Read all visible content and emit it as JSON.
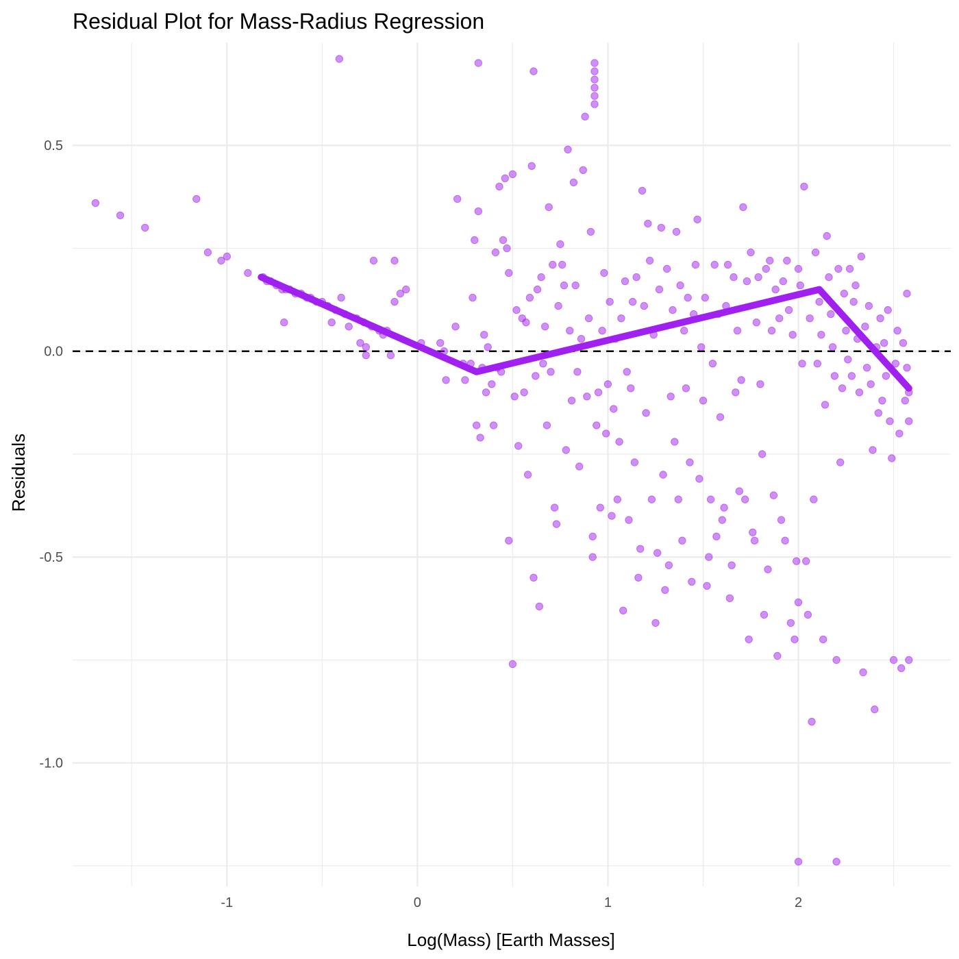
{
  "chart_data": {
    "type": "scatter",
    "title": "Residual Plot for Mass-Radius Regression",
    "xlabel": "Log(Mass) [Earth Masses]",
    "ylabel": "Residuals",
    "xlim": [
      -1.81,
      2.8
    ],
    "ylim": [
      -1.3,
      0.75
    ],
    "x_ticks": [
      -1,
      0,
      1,
      2
    ],
    "x_tick_labels": [
      "-1",
      "0",
      "1",
      "2"
    ],
    "y_ticks": [
      -1.0,
      -0.5,
      0.0,
      0.5
    ],
    "y_tick_labels": [
      "-1.0",
      "-0.5",
      "0.0",
      "0.5"
    ],
    "grid": true,
    "reference_line": {
      "y": 0,
      "style": "dashed",
      "color": "#000000"
    },
    "point_color": "#a020f0",
    "points": [
      [
        -1.69,
        0.36
      ],
      [
        -1.56,
        0.33
      ],
      [
        -1.43,
        0.3
      ],
      [
        -1.16,
        0.37
      ],
      [
        -1.1,
        0.24
      ],
      [
        -1.03,
        0.22
      ],
      [
        -1.0,
        0.23
      ],
      [
        -0.89,
        0.19
      ],
      [
        -0.81,
        0.18
      ],
      [
        -0.79,
        0.17
      ],
      [
        -0.77,
        0.17
      ],
      [
        -0.74,
        0.16
      ],
      [
        -0.71,
        0.15
      ],
      [
        -0.7,
        0.07
      ],
      [
        -0.69,
        0.15
      ],
      [
        -0.67,
        0.15
      ],
      [
        -0.64,
        0.14
      ],
      [
        -0.61,
        0.14
      ],
      [
        -0.58,
        0.13
      ],
      [
        -0.56,
        0.13
      ],
      [
        -0.53,
        0.12
      ],
      [
        -0.5,
        0.12
      ],
      [
        -0.47,
        0.11
      ],
      [
        -0.45,
        0.07
      ],
      [
        -0.43,
        0.1
      ],
      [
        -0.41,
        0.71
      ],
      [
        -0.4,
        0.13
      ],
      [
        -0.38,
        0.09
      ],
      [
        -0.36,
        0.06
      ],
      [
        -0.32,
        0.08
      ],
      [
        -0.3,
        0.02
      ],
      [
        -0.28,
        0.07
      ],
      [
        -0.27,
        0.01
      ],
      [
        -0.27,
        -0.01
      ],
      [
        -0.24,
        0.06
      ],
      [
        -0.23,
        0.22
      ],
      [
        -0.2,
        0.05
      ],
      [
        -0.18,
        0.04
      ],
      [
        -0.16,
        0.05
      ],
      [
        -0.14,
        -0.01
      ],
      [
        -0.12,
        0.12
      ],
      [
        -0.12,
        0.22
      ],
      [
        -0.09,
        0.14
      ],
      [
        -0.06,
        0.15
      ],
      [
        0.02,
        0.02
      ],
      [
        0.12,
        0.02
      ],
      [
        0.14,
        0.0
      ],
      [
        0.15,
        -0.07
      ],
      [
        0.2,
        0.06
      ],
      [
        0.21,
        0.37
      ],
      [
        0.24,
        -0.03
      ],
      [
        0.25,
        -0.07
      ],
      [
        0.28,
        -0.03
      ],
      [
        0.29,
        0.13
      ],
      [
        0.3,
        0.27
      ],
      [
        0.31,
        -0.18
      ],
      [
        0.32,
        0.34
      ],
      [
        0.32,
        0.7
      ],
      [
        0.33,
        -0.21
      ],
      [
        0.34,
        -0.04
      ],
      [
        0.35,
        0.04
      ],
      [
        0.36,
        -0.1
      ],
      [
        0.37,
        0.01
      ],
      [
        0.39,
        -0.08
      ],
      [
        0.4,
        -0.18
      ],
      [
        0.41,
        0.24
      ],
      [
        0.42,
        -0.04
      ],
      [
        0.43,
        0.4
      ],
      [
        0.44,
        -0.05
      ],
      [
        0.45,
        0.27
      ],
      [
        0.46,
        0.42
      ],
      [
        0.47,
        0.25
      ],
      [
        0.48,
        0.19
      ],
      [
        0.48,
        -0.46
      ],
      [
        0.5,
        0.43
      ],
      [
        0.5,
        -0.76
      ],
      [
        0.51,
        -0.11
      ],
      [
        0.52,
        0.1
      ],
      [
        0.53,
        -0.23
      ],
      [
        0.55,
        0.08
      ],
      [
        0.56,
        -0.1
      ],
      [
        0.57,
        0.07
      ],
      [
        0.58,
        -0.3
      ],
      [
        0.59,
        0.13
      ],
      [
        0.6,
        0.45
      ],
      [
        0.61,
        0.68
      ],
      [
        0.61,
        -0.55
      ],
      [
        0.62,
        -0.06
      ],
      [
        0.63,
        0.15
      ],
      [
        0.64,
        -0.62
      ],
      [
        0.65,
        0.18
      ],
      [
        0.66,
        -0.03
      ],
      [
        0.67,
        0.06
      ],
      [
        0.68,
        -0.18
      ],
      [
        0.69,
        0.35
      ],
      [
        0.7,
        -0.05
      ],
      [
        0.71,
        0.21
      ],
      [
        0.72,
        -0.38
      ],
      [
        0.73,
        -0.42
      ],
      [
        0.74,
        0.11
      ],
      [
        0.75,
        0.26
      ],
      [
        0.76,
        0.21
      ],
      [
        0.77,
        0.16
      ],
      [
        0.78,
        -0.24
      ],
      [
        0.79,
        0.49
      ],
      [
        0.8,
        0.05
      ],
      [
        0.81,
        -0.12
      ],
      [
        0.82,
        0.41
      ],
      [
        0.83,
        0.16
      ],
      [
        0.84,
        -0.05
      ],
      [
        0.85,
        -0.28
      ],
      [
        0.86,
        0.03
      ],
      [
        0.87,
        0.44
      ],
      [
        0.88,
        0.57
      ],
      [
        0.89,
        -0.11
      ],
      [
        0.9,
        0.08
      ],
      [
        0.91,
        0.29
      ],
      [
        0.92,
        -0.45
      ],
      [
        0.92,
        -0.5
      ],
      [
        0.93,
        0.7
      ],
      [
        0.93,
        0.68
      ],
      [
        0.93,
        0.66
      ],
      [
        0.93,
        0.64
      ],
      [
        0.93,
        0.62
      ],
      [
        0.93,
        0.6
      ],
      [
        0.94,
        -0.18
      ],
      [
        0.95,
        -0.1
      ],
      [
        0.96,
        -0.38
      ],
      [
        0.97,
        0.05
      ],
      [
        0.98,
        0.19
      ],
      [
        0.99,
        -0.2
      ],
      [
        1.0,
        -0.08
      ],
      [
        1.01,
        0.12
      ],
      [
        1.02,
        -0.4
      ],
      [
        1.03,
        -0.14
      ],
      [
        1.04,
        0.03
      ],
      [
        1.05,
        -0.36
      ],
      [
        1.06,
        -0.22
      ],
      [
        1.07,
        0.08
      ],
      [
        1.08,
        -0.63
      ],
      [
        1.09,
        0.17
      ],
      [
        1.1,
        -0.05
      ],
      [
        1.11,
        -0.41
      ],
      [
        1.12,
        -0.09
      ],
      [
        1.13,
        0.12
      ],
      [
        1.14,
        -0.27
      ],
      [
        1.15,
        0.18
      ],
      [
        1.16,
        -0.55
      ],
      [
        1.17,
        -0.48
      ],
      [
        1.18,
        0.39
      ],
      [
        1.19,
        0.11
      ],
      [
        1.2,
        -0.15
      ],
      [
        1.21,
        0.31
      ],
      [
        1.22,
        0.22
      ],
      [
        1.23,
        -0.36
      ],
      [
        1.24,
        0.04
      ],
      [
        1.25,
        -0.66
      ],
      [
        1.26,
        -0.49
      ],
      [
        1.27,
        0.15
      ],
      [
        1.28,
        0.3
      ],
      [
        1.29,
        -0.3
      ],
      [
        1.3,
        -0.58
      ],
      [
        1.31,
        0.2
      ],
      [
        1.32,
        -0.52
      ],
      [
        1.33,
        -0.11
      ],
      [
        1.34,
        0.1
      ],
      [
        1.35,
        -0.22
      ],
      [
        1.36,
        0.29
      ],
      [
        1.37,
        -0.36
      ],
      [
        1.38,
        0.16
      ],
      [
        1.39,
        -0.46
      ],
      [
        1.4,
        0.05
      ],
      [
        1.41,
        -0.09
      ],
      [
        1.42,
        0.13
      ],
      [
        1.43,
        -0.27
      ],
      [
        1.44,
        -0.56
      ],
      [
        1.45,
        0.09
      ],
      [
        1.46,
        0.21
      ],
      [
        1.47,
        0.32
      ],
      [
        1.48,
        -0.31
      ],
      [
        1.49,
        0.01
      ],
      [
        1.5,
        -0.12
      ],
      [
        1.51,
        0.13
      ],
      [
        1.52,
        -0.57
      ],
      [
        1.53,
        -0.5
      ],
      [
        1.54,
        -0.36
      ],
      [
        1.55,
        -0.03
      ],
      [
        1.56,
        0.21
      ],
      [
        1.57,
        -0.45
      ],
      [
        1.58,
        0.09
      ],
      [
        1.59,
        -0.16
      ],
      [
        1.6,
        -0.41
      ],
      [
        1.61,
        -0.38
      ],
      [
        1.62,
        0.11
      ],
      [
        1.63,
        0.21
      ],
      [
        1.64,
        -0.6
      ],
      [
        1.65,
        -0.52
      ],
      [
        1.66,
        0.18
      ],
      [
        1.67,
        -0.1
      ],
      [
        1.68,
        0.05
      ],
      [
        1.69,
        -0.34
      ],
      [
        1.7,
        -0.07
      ],
      [
        1.71,
        0.35
      ],
      [
        1.72,
        -0.36
      ],
      [
        1.73,
        0.17
      ],
      [
        1.74,
        -0.7
      ],
      [
        1.75,
        0.24
      ],
      [
        1.76,
        -0.44
      ],
      [
        1.77,
        -0.46
      ],
      [
        1.78,
        0.07
      ],
      [
        1.79,
        0.18
      ],
      [
        1.8,
        -0.08
      ],
      [
        1.81,
        -0.25
      ],
      [
        1.82,
        -0.64
      ],
      [
        1.83,
        0.2
      ],
      [
        1.84,
        -0.53
      ],
      [
        1.85,
        0.22
      ],
      [
        1.86,
        0.05
      ],
      [
        1.87,
        -0.35
      ],
      [
        1.88,
        0.15
      ],
      [
        1.89,
        -0.74
      ],
      [
        1.9,
        0.08
      ],
      [
        1.91,
        -0.41
      ],
      [
        1.92,
        0.17
      ],
      [
        1.93,
        -0.46
      ],
      [
        1.94,
        0.22
      ],
      [
        1.95,
        0.1
      ],
      [
        1.96,
        -0.66
      ],
      [
        1.97,
        0.04
      ],
      [
        1.98,
        -0.7
      ],
      [
        1.99,
        -0.51
      ],
      [
        2.0,
        0.2
      ],
      [
        2.0,
        -1.24
      ],
      [
        2.0,
        -0.61
      ],
      [
        2.01,
        0.16
      ],
      [
        2.02,
        -0.03
      ],
      [
        2.03,
        0.4
      ],
      [
        2.04,
        -0.51
      ],
      [
        2.05,
        -0.64
      ],
      [
        2.06,
        0.08
      ],
      [
        2.07,
        -0.9
      ],
      [
        2.08,
        -0.36
      ],
      [
        2.09,
        0.24
      ],
      [
        2.1,
        -0.03
      ],
      [
        2.11,
        0.12
      ],
      [
        2.12,
        0.04
      ],
      [
        2.13,
        -0.7
      ],
      [
        2.14,
        -0.13
      ],
      [
        2.15,
        0.28
      ],
      [
        2.16,
        0.18
      ],
      [
        2.17,
        0.09
      ],
      [
        2.18,
        0.01
      ],
      [
        2.19,
        -0.06
      ],
      [
        2.2,
        -1.24
      ],
      [
        2.2,
        -0.75
      ],
      [
        2.21,
        0.2
      ],
      [
        2.22,
        -0.27
      ],
      [
        2.23,
        -0.09
      ],
      [
        2.24,
        0.14
      ],
      [
        2.25,
        0.05
      ],
      [
        2.26,
        -0.02
      ],
      [
        2.27,
        0.2
      ],
      [
        2.28,
        -0.06
      ],
      [
        2.29,
        0.12
      ],
      [
        2.3,
        0.16
      ],
      [
        2.31,
        0.03
      ],
      [
        2.32,
        -0.1
      ],
      [
        2.33,
        0.23
      ],
      [
        2.34,
        -0.78
      ],
      [
        2.35,
        0.06
      ],
      [
        2.36,
        -0.04
      ],
      [
        2.37,
        0.11
      ],
      [
        2.38,
        -0.08
      ],
      [
        2.39,
        -0.24
      ],
      [
        2.4,
        -0.87
      ],
      [
        2.41,
        0.01
      ],
      [
        2.42,
        -0.15
      ],
      [
        2.43,
        0.08
      ],
      [
        2.44,
        -0.12
      ],
      [
        2.45,
        0.02
      ],
      [
        2.46,
        -0.06
      ],
      [
        2.47,
        0.1
      ],
      [
        2.48,
        -0.17
      ],
      [
        2.49,
        -0.26
      ],
      [
        2.5,
        -0.75
      ],
      [
        2.51,
        -0.03
      ],
      [
        2.52,
        0.05
      ],
      [
        2.53,
        -0.2
      ],
      [
        2.54,
        -0.77
      ],
      [
        2.55,
        0.02
      ],
      [
        2.56,
        -0.12
      ],
      [
        2.57,
        0.14
      ],
      [
        2.57,
        -0.04
      ],
      [
        2.58,
        -0.75
      ],
      [
        2.58,
        -0.17
      ],
      [
        2.58,
        -0.1
      ]
    ],
    "fit_line": {
      "x": [
        -0.82,
        0.31,
        2.11,
        2.58
      ],
      "y": [
        0.18,
        -0.05,
        0.15,
        -0.09
      ]
    }
  }
}
